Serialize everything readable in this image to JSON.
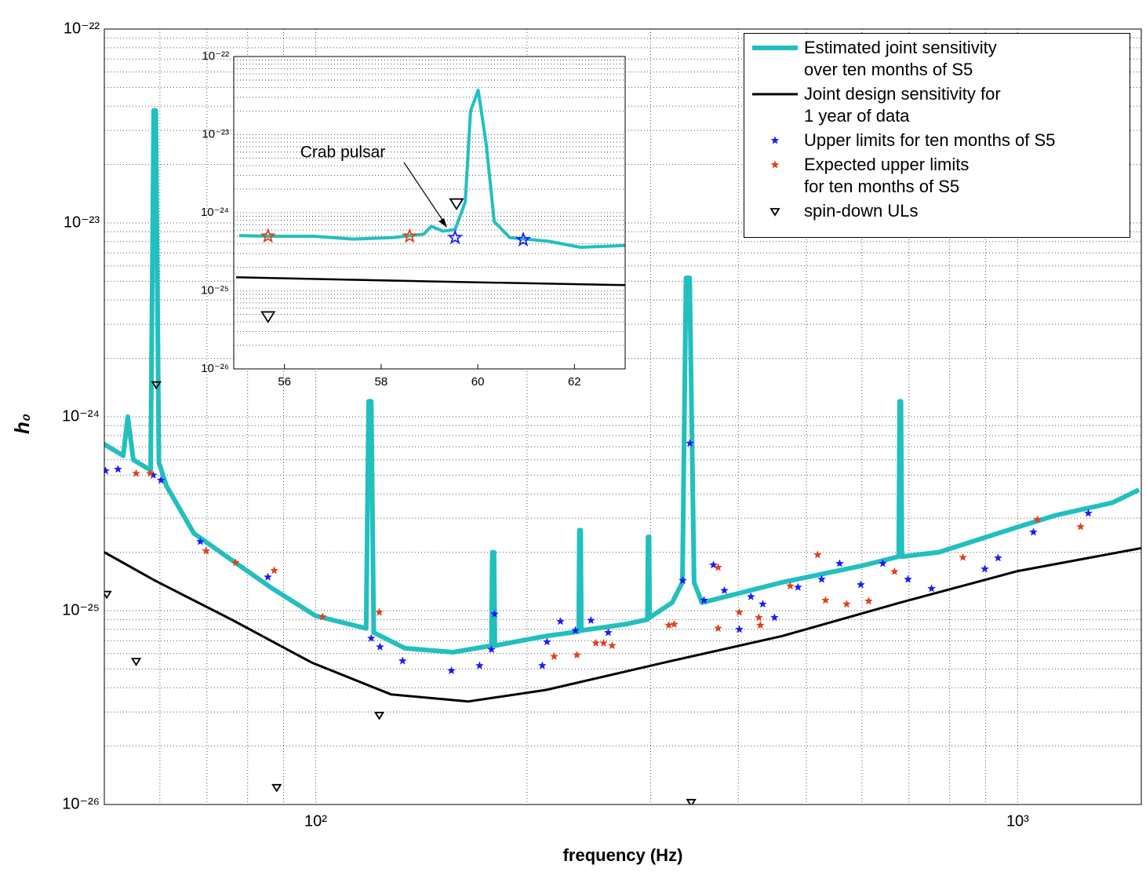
{
  "chart_data": [
    {
      "type": "line",
      "xscale": "log",
      "yscale": "log",
      "xlabel": "frequency (Hz)",
      "ylabel": "h₀",
      "xlim": [
        50,
        1500
      ],
      "ylim": [
        1e-26,
        1e-22
      ],
      "xticks": [
        {
          "value": 100,
          "label": "10²"
        },
        {
          "value": 1000,
          "label": "10³"
        }
      ],
      "yticks": [
        {
          "value": 1e-26,
          "label": "10⁻²⁶"
        },
        {
          "value": 1e-25,
          "label": "10⁻²⁵"
        },
        {
          "value": 1e-24,
          "label": "10⁻²⁴"
        },
        {
          "value": 1e-23,
          "label": "10⁻²³"
        },
        {
          "value": 1e-22,
          "label": "10⁻²²"
        }
      ],
      "xgrid": true,
      "ygrid": true,
      "minor_grid": true,
      "legend": "upper right",
      "series": [
        {
          "name": "Estimated joint sensitivity\nover ten months of S5",
          "color": "#22bfbf",
          "mode": "line",
          "x": [
            49.7,
            53.2,
            54.0,
            55.0,
            58.2,
            58.8,
            59.2,
            59.8,
            61.3,
            67.1,
            76.3,
            86.8,
            100,
            118,
            119,
            120,
            121,
            134,
            157,
            178,
            178.5,
            179.5,
            180,
            213,
            237,
            237.5,
            238.5,
            239,
            276,
            297,
            297.5,
            298.5,
            299,
            322,
            333,
            337,
            341,
            346,
            355,
            462,
            598,
            677,
            679,
            682,
            684,
            772,
            1000,
            1132,
            1363,
            1489
          ],
          "values": [
            7.3e-25,
            6.3e-25,
            1e-24,
            6e-25,
            5.3e-25,
            3.8e-23,
            3.8e-23,
            5.8e-25,
            4.4e-25,
            2.5e-25,
            1.8e-25,
            1.3e-25,
            9.4e-26,
            8.1e-26,
            1.2e-24,
            1.2e-24,
            7.7e-26,
            6.4e-26,
            6.1e-26,
            6.6e-26,
            2e-25,
            2e-25,
            6.6e-26,
            7.4e-26,
            7.8e-26,
            2.6e-25,
            2.6e-25,
            7.9e-26,
            8.5e-26,
            9e-26,
            2.4e-25,
            2.4e-25,
            9.2e-26,
            1.1e-25,
            1.4e-25,
            5.2e-24,
            5.2e-24,
            1.4e-25,
            1.1e-25,
            1.4e-25,
            1.7e-25,
            1.9e-25,
            1.2e-24,
            1.2e-24,
            1.9e-25,
            2e-25,
            2.7e-25,
            3.1e-25,
            3.6e-25,
            4.2e-25
          ]
        },
        {
          "name": "Joint design sensitivity for\n1 year of data",
          "color": "#000000",
          "mode": "line",
          "x": [
            50,
            59,
            76.3,
            98.7,
            128,
            165,
            213,
            314,
            462,
            680,
            1000,
            1500
          ],
          "values": [
            2e-25,
            1.43e-25,
            8.9e-26,
            5.4e-26,
            3.7e-26,
            3.4e-26,
            3.9e-26,
            5.4e-26,
            7.4e-26,
            1.1e-25,
            1.6e-25,
            2.1e-25
          ]
        },
        {
          "name": "Upper limits for ten months of S5",
          "color": "#1a1aff",
          "mode": "markers",
          "marker": "star",
          "marker_fill": true,
          "x": [
            50.2,
            52.3,
            58.7,
            60.2,
            68.5,
            85.5,
            120.0,
            123.5,
            133.0,
            156.1,
            171.2,
            178.0,
            179.8,
            210.3,
            213.6,
            223.2,
            234.4,
            246.7,
            261.1,
            333.4,
            341.2,
            357.4,
            368.6,
            382.1,
            401.3,
            416.9,
            433.4,
            450.4,
            486.6,
            525.8,
            557.7,
            597.8,
            642.5,
            697.9,
            753.9,
            897.8,
            937.8,
            1053,
            1261
          ],
          "values": [
            5.26e-25,
            5.36e-25,
            5e-25,
            4.7e-25,
            2.27e-25,
            1.49e-25,
            7.2e-26,
            6.5e-26,
            5.5e-26,
            4.9e-26,
            5.2e-26,
            6.3e-26,
            9.6e-26,
            5.2e-26,
            6.9e-26,
            8.8e-26,
            7.9e-26,
            8.9e-26,
            7.7e-26,
            1.43e-25,
            7.3e-25,
            1.13e-25,
            1.72e-25,
            1.27e-25,
            8e-26,
            1.18e-25,
            1.08e-25,
            9.2e-26,
            1.32e-25,
            1.45e-25,
            1.75e-25,
            1.36e-25,
            1.75e-25,
            1.45e-25,
            1.3e-25,
            1.64e-25,
            1.87e-25,
            2.54e-25,
            3.18e-25
          ]
        },
        {
          "name": "Expected upper limits\nfor ten months of S5",
          "color": "#e0401a",
          "mode": "markers",
          "marker": "star",
          "marker_fill": true,
          "x": [
            55.5,
            58.1,
            69.8,
            76.9,
            87.3,
            102.3,
            123.2,
            218.6,
            235.6,
            250.6,
            257.1,
            264.5,
            318.4,
            324.1,
            374.4,
            374.4,
            401.3,
            427.8,
            430.0,
            474.2,
            518.9,
            532.4,
            570.6,
            613.4,
            667.7,
            835.6,
            1067,
            1229
          ],
          "values": [
            5.1e-25,
            5.1e-25,
            2.03e-25,
            1.77e-25,
            1.61e-25,
            9.3e-26,
            9.8e-26,
            5.8e-26,
            5.9e-26,
            6.8e-26,
            6.8e-26,
            6.6e-26,
            8.4e-26,
            8.5e-26,
            1.67e-25,
            8.1e-26,
            9.8e-26,
            9.2e-26,
            8.4e-26,
            1.34e-25,
            1.94e-25,
            1.13e-25,
            1.08e-25,
            1.12e-25,
            1.59e-25,
            1.88e-25,
            2.95e-25,
            2.71e-25
          ]
        },
        {
          "name": "spin-down ULs",
          "color": "#000000",
          "mode": "markers",
          "marker": "triangle",
          "marker_fill": false,
          "x": [
            50.4,
            55.5,
            59.3,
            88.0,
            123.2,
            342.7
          ],
          "values": [
            1.22e-25,
            5.5e-26,
            1.47e-24,
            1.23e-26,
            2.9e-26,
            1.03e-26
          ]
        }
      ]
    },
    {
      "type": "line",
      "xscale": "linear",
      "yscale": "log",
      "annotation": "Crab pulsar",
      "xlim": [
        54.95,
        63.05
      ],
      "ylim": [
        1e-26,
        1e-22
      ],
      "xticks": [
        56,
        58,
        60,
        62
      ],
      "yticks": [
        {
          "value": 1e-26,
          "label": "10⁻²⁶"
        },
        {
          "value": 1e-25,
          "label": "10⁻²⁵"
        },
        {
          "value": 1e-24,
          "label": "10⁻²⁴"
        },
        {
          "value": 1e-23,
          "label": "10⁻²³"
        },
        {
          "value": 1e-22,
          "label": "10⁻²²"
        }
      ],
      "xgrid": false,
      "ygrid": true,
      "minor_grid": true,
      "series": [
        {
          "color": "#22bfbf",
          "mode": "line",
          "x": [
            55.06,
            55.63,
            56.61,
            57.42,
            58.23,
            58.88,
            59.04,
            59.28,
            59.53,
            59.74,
            59.85,
            60.01,
            60.18,
            60.34,
            60.66,
            61.48,
            62.13,
            63.05
          ],
          "values": [
            5.1e-25,
            5e-25,
            5e-25,
            4.6e-25,
            4.8e-25,
            5.3e-25,
            6.7e-25,
            5.8e-25,
            6.1e-25,
            1.37e-24,
            2e-23,
            3.7e-23,
            7.1e-24,
            7.7e-25,
            4.8e-25,
            4.3e-25,
            3.6e-25,
            3.8e-25
          ]
        },
        {
          "color": "#000000",
          "mode": "line",
          "x": [
            55.0,
            59.0,
            63.05
          ],
          "values": [
            1.49e-25,
            1.32e-25,
            1.18e-25
          ]
        },
        {
          "color": "#1a1aff",
          "mode": "markers",
          "marker": "star",
          "marker_fill": false,
          "x": [
            59.53,
            60.94
          ],
          "values": [
            4.8e-25,
            4.5e-25
          ]
        },
        {
          "color": "#e0401a",
          "mode": "markers",
          "marker": "star",
          "marker_fill": false,
          "x": [
            55.66,
            58.59
          ],
          "values": [
            5e-25,
            5e-25
          ]
        },
        {
          "color": "#000000",
          "mode": "markers",
          "marker": "triangle",
          "marker_fill": false,
          "x": [
            59.56,
            55.66
          ],
          "values": [
            1.34e-24,
            4.8e-26
          ]
        }
      ]
    }
  ]
}
